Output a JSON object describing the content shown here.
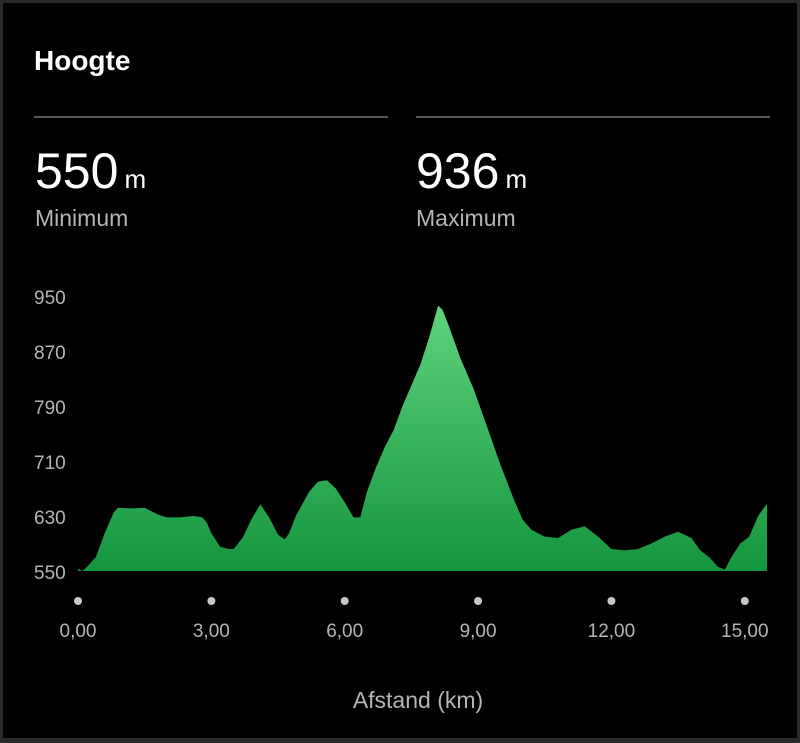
{
  "header": {
    "title": "Hoogte"
  },
  "stats": [
    {
      "value": "550",
      "unit": "m",
      "label": "Minimum"
    },
    {
      "value": "936",
      "unit": "m",
      "label": "Maximum"
    }
  ],
  "colors": {
    "fill_top": "#5fd27d",
    "fill_bottom": "#14963e",
    "tick_dot": "#c8c8c8"
  },
  "chart_data": {
    "type": "area",
    "xlabel": "Afstand (km)",
    "ylabel": "",
    "xlim": [
      0,
      15.5
    ],
    "ylim": [
      550,
      950
    ],
    "x_ticks": [
      0,
      3,
      6,
      9,
      12,
      15
    ],
    "x_tick_labels": [
      "0,00",
      "3,00",
      "6,00",
      "9,00",
      "12,00",
      "15,00"
    ],
    "y_ticks": [
      550,
      630,
      710,
      790,
      870,
      950
    ],
    "y_tick_labels": [
      "550",
      "630",
      "710",
      "790",
      "870",
      "950"
    ],
    "grid": false,
    "series": [
      {
        "x": [
          0.0,
          0.1,
          0.2,
          0.4,
          0.6,
          0.8,
          0.9,
          1.2,
          1.5,
          1.8,
          2.0,
          2.3,
          2.6,
          2.8,
          2.9,
          3.0,
          3.2,
          3.4,
          3.5,
          3.7,
          3.9,
          4.1,
          4.3,
          4.5,
          4.65,
          4.75,
          4.9,
          5.2,
          5.4,
          5.6,
          5.8,
          6.0,
          6.2,
          6.35,
          6.5,
          6.7,
          6.9,
          7.1,
          7.3,
          7.5,
          7.7,
          7.9,
          8.1,
          8.2,
          8.35,
          8.6,
          8.9,
          9.2,
          9.5,
          9.8,
          10.0,
          10.2,
          10.5,
          10.8,
          11.1,
          11.4,
          11.7,
          12.0,
          12.3,
          12.6,
          12.9,
          13.2,
          13.5,
          13.8,
          14.0,
          14.2,
          14.4,
          14.55,
          14.7,
          14.9,
          15.1,
          15.3,
          15.5
        ],
        "y": [
          553,
          550,
          556,
          570,
          605,
          635,
          642,
          641,
          642,
          632,
          628,
          628,
          630,
          628,
          620,
          605,
          585,
          582,
          582,
          598,
          625,
          647,
          628,
          603,
          596,
          605,
          630,
          665,
          680,
          682,
          670,
          650,
          628,
          628,
          665,
          700,
          730,
          755,
          790,
          820,
          850,
          890,
          936,
          930,
          905,
          860,
          815,
          760,
          705,
          655,
          625,
          610,
          600,
          598,
          610,
          615,
          600,
          582,
          580,
          582,
          590,
          600,
          607,
          598,
          580,
          570,
          556,
          552,
          570,
          590,
          600,
          630,
          648
        ]
      }
    ]
  }
}
